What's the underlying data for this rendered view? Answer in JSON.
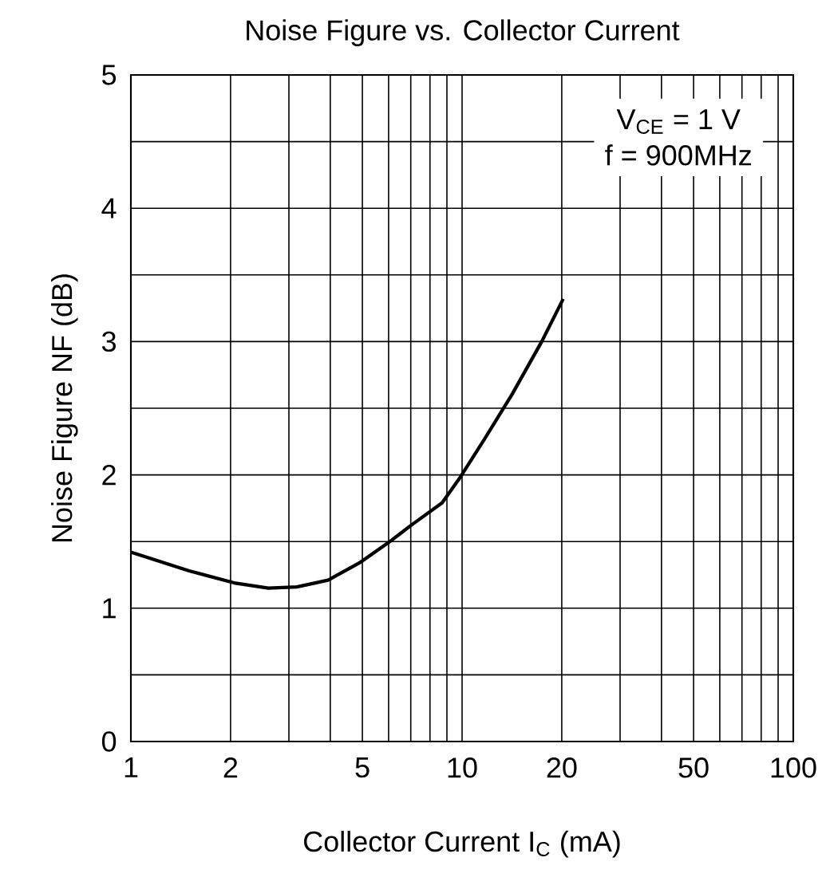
{
  "chart_data": {
    "type": "line",
    "title": "Noise Figure vs. Collector Current",
    "xlabel": "Collector Current I$_{C}$ (mA)",
    "ylabel": "Noise Figure NF (dB)",
    "log": "x",
    "grid": true,
    "xlim": [
      1,
      100
    ],
    "ylim": [
      0,
      5
    ],
    "xticks": [
      1,
      2,
      {
        "value": 3,
        "label": null
      },
      {
        "value": 4,
        "label": null
      },
      5,
      {
        "value": 6,
        "label": null
      },
      {
        "value": 7,
        "label": null
      },
      {
        "value": 8,
        "label": null
      },
      {
        "value": 9,
        "label": null
      },
      10,
      20,
      {
        "value": 30,
        "label": null
      },
      {
        "value": 40,
        "label": null
      },
      50,
      {
        "value": 60,
        "label": null
      },
      {
        "value": 70,
        "label": null
      },
      {
        "value": 80,
        "label": null
      },
      {
        "value": 90,
        "label": null
      },
      100
    ],
    "yticks": [
      0,
      {
        "value": 0.5,
        "label": null
      },
      1,
      {
        "value": 1.5,
        "label": null
      },
      2,
      {
        "value": 2.5,
        "label": null
      },
      3,
      {
        "value": 3.5,
        "label": null
      },
      4,
      {
        "value": 4.5,
        "label": null
      },
      5
    ],
    "annotations": [
      "V$_{CE}$ = 1 V",
      "f = 900MHz"
    ],
    "series": [
      {
        "color": "#000000",
        "x": [
          1,
          1.5,
          2.05,
          2.6,
          3.17,
          3.94,
          4.9,
          5.98,
          7.0,
          8.7,
          9.8,
          11.7,
          14.2,
          17.4,
          20.2
        ],
        "values": [
          1.42,
          1.28,
          1.19,
          1.15,
          1.16,
          1.21,
          1.34,
          1.49,
          1.62,
          1.79,
          1.97,
          2.27,
          2.61,
          3.0,
          3.32
        ]
      }
    ]
  }
}
